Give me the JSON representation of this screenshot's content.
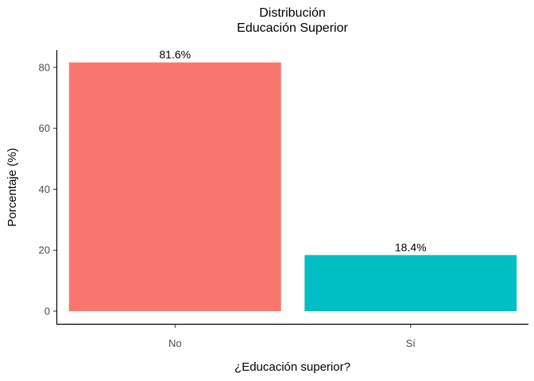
{
  "chart_data": {
    "type": "bar",
    "title": [
      "Distribución",
      "Educación Superior"
    ],
    "xlabel": "¿Educación superior?",
    "ylabel": "Porcentaje (%)",
    "categories": [
      "No",
      "Sí"
    ],
    "values": [
      81.6,
      18.4
    ],
    "data_labels": [
      "81.6%",
      "18.4%"
    ],
    "colors": [
      "#F8766D",
      "#00BFC4"
    ],
    "ylim": [
      0,
      85.68
    ],
    "y_ticks": [
      0,
      20,
      40,
      60,
      80
    ],
    "grid": false,
    "legend": "none"
  }
}
